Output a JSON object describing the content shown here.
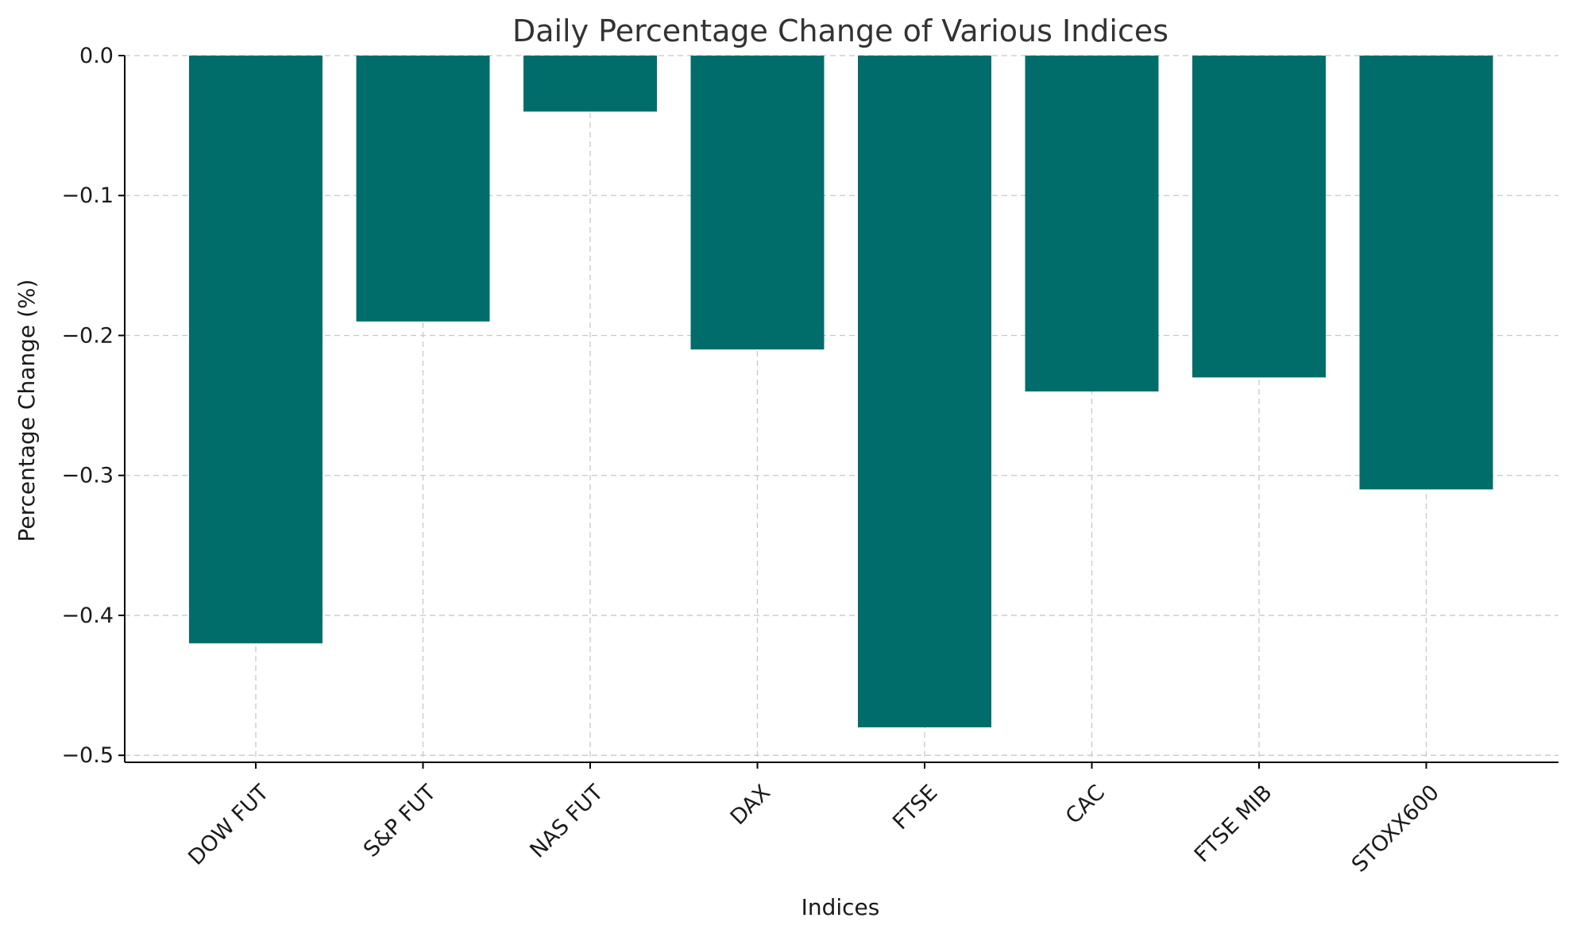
{
  "chart_data": {
    "type": "bar",
    "title": "Daily Percentage Change of Various Indices",
    "xlabel": "Indices",
    "ylabel": "Percentage Change (%)",
    "categories": [
      "DOW FUT",
      "S&P FUT",
      "NAS FUT",
      "DAX",
      "FTSE",
      "CAC",
      "FTSE MIB",
      "STOXX600"
    ],
    "values": [
      -0.42,
      -0.19,
      -0.04,
      -0.21,
      -0.48,
      -0.24,
      -0.23,
      -0.31
    ],
    "ylim": [
      -0.505,
      0.0
    ],
    "yticks": [
      0.0,
      -0.1,
      -0.2,
      -0.3,
      -0.4,
      -0.5
    ],
    "ytick_labels": [
      "0.0",
      "−0.1",
      "−0.2",
      "−0.3",
      "−0.4",
      "−0.5"
    ],
    "grid": true,
    "bar_color": "#006d6b"
  }
}
